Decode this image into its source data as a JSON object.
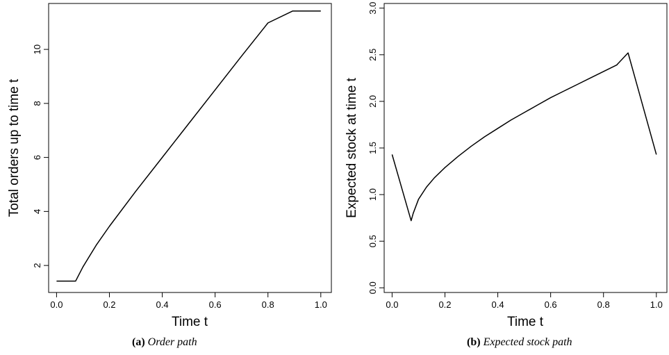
{
  "chart_data": [
    {
      "type": "line",
      "xlabel": "Time t",
      "ylabel": "Total orders up to time t",
      "xlim": [
        -0.03,
        1.04
      ],
      "ylim": [
        1.0,
        11.7
      ],
      "x_ticks": [
        0.0,
        0.2,
        0.4,
        0.6,
        0.8,
        1.0
      ],
      "x_tick_labels": [
        "0.0",
        "0.2",
        "0.4",
        "0.6",
        "0.8",
        "1.0"
      ],
      "y_ticks": [
        2,
        4,
        6,
        8,
        10
      ],
      "y_tick_labels": [
        "2",
        "4",
        "6",
        "8",
        "10"
      ],
      "grid": false,
      "series": [
        {
          "x": [
            0.0,
            0.072,
            0.1,
            0.15,
            0.2,
            0.3,
            0.4,
            0.5,
            0.6,
            0.7,
            0.8,
            0.893,
            1.0
          ],
          "y": [
            1.42,
            1.42,
            1.95,
            2.75,
            3.45,
            4.75,
            6.0,
            7.25,
            8.5,
            9.75,
            10.98,
            11.42,
            11.42
          ]
        }
      ]
    },
    {
      "type": "line",
      "xlabel": "Time t",
      "ylabel": "Expected stock at time t",
      "xlim": [
        -0.03,
        1.04
      ],
      "ylim": [
        -0.05,
        3.05
      ],
      "x_ticks": [
        0.0,
        0.2,
        0.4,
        0.6,
        0.8,
        1.0
      ],
      "x_tick_labels": [
        "0.0",
        "0.2",
        "0.4",
        "0.6",
        "0.8",
        "1.0"
      ],
      "y_ticks": [
        0.0,
        0.5,
        1.0,
        1.5,
        2.0,
        2.5,
        3.0
      ],
      "y_tick_labels": [
        "0.0",
        "0.5",
        "1.0",
        "1.5",
        "2.0",
        "2.5",
        "3.0"
      ],
      "grid": false,
      "series": [
        {
          "x": [
            0.0,
            0.072,
            0.08,
            0.1,
            0.13,
            0.16,
            0.2,
            0.25,
            0.3,
            0.35,
            0.4,
            0.45,
            0.5,
            0.55,
            0.6,
            0.65,
            0.7,
            0.75,
            0.8,
            0.85,
            0.893,
            1.0
          ],
          "y": [
            1.43,
            0.72,
            0.8,
            0.95,
            1.08,
            1.18,
            1.29,
            1.41,
            1.52,
            1.62,
            1.71,
            1.8,
            1.88,
            1.96,
            2.04,
            2.11,
            2.18,
            2.25,
            2.32,
            2.39,
            2.52,
            1.43
          ]
        }
      ]
    }
  ],
  "captions": [
    {
      "tag": "(a)",
      "text": "Order path"
    },
    {
      "tag": "(b)",
      "text": "Expected stock path"
    }
  ]
}
